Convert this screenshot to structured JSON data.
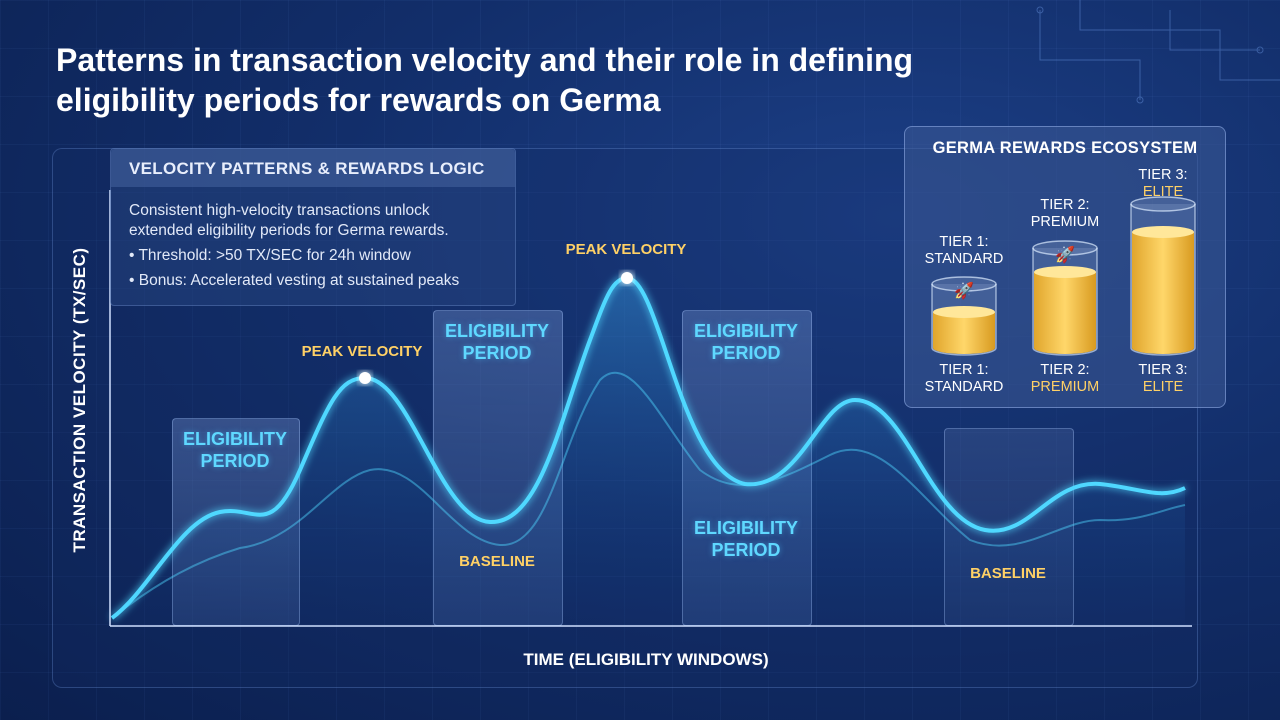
{
  "title": "Patterns in transaction velocity and their role in defining eligibility periods for rewards on Germa",
  "logic_box": {
    "heading": "VELOCITY PATTERNS & REWARDS LOGIC",
    "line1": "Consistent high-velocity transactions unlock",
    "line2": "extended eligibility periods for Germa rewards.",
    "bullet1": "• Threshold: >50 TX/SEC for 24h window",
    "bullet2": "• Bonus: Accelerated vesting at sustained peaks"
  },
  "axes": {
    "y_label": "TRANSACTION VELOCITY (TX/SEC)",
    "x_label": "TIME (ELIGIBILITY WINDOWS)"
  },
  "windows": [
    {
      "line1": "ELIGIBILITY",
      "line2": "PERIOD"
    },
    {
      "line1": "ELIGIBILITY",
      "line2": "PERIOD"
    },
    {
      "line1": "ELIGIBILITY",
      "line2": "PERIOD"
    }
  ],
  "window_lower_label": {
    "line1": "ELIGIBILITY",
    "line2": "PERIOD"
  },
  "annotations": {
    "peak1": "PEAK VELOCITY",
    "peak2": "PEAK VELOCITY",
    "baseline1": "BASELINE",
    "baseline2": "BASELINE"
  },
  "ecosystem": {
    "title": "GERMA REWARDS ECOSYSTEM",
    "tiers": [
      {
        "top_line1": "TIER 1:",
        "top_line2": "STANDARD",
        "bottom_line1": "TIER 1:",
        "bottom_line2": "STANDARD",
        "fill": 0.45
      },
      {
        "top_line1": "TIER 2:",
        "top_line2": "PREMIUM",
        "bottom_line1": "TIER 2:",
        "bottom_line2": "PREMIUM",
        "fill": 0.75
      },
      {
        "top_line1": "TIER 3:",
        "top_line2": "ELITE",
        "bottom_line1": "TIER 3:",
        "bottom_line2": "ELITE",
        "fill": 0.8
      }
    ]
  },
  "colors": {
    "accent_cyan": "#4fd8ff",
    "accent_gold": "#ffd166",
    "background": "#122e6a"
  },
  "icons": {
    "tier_badge": "rocket-icon"
  }
}
